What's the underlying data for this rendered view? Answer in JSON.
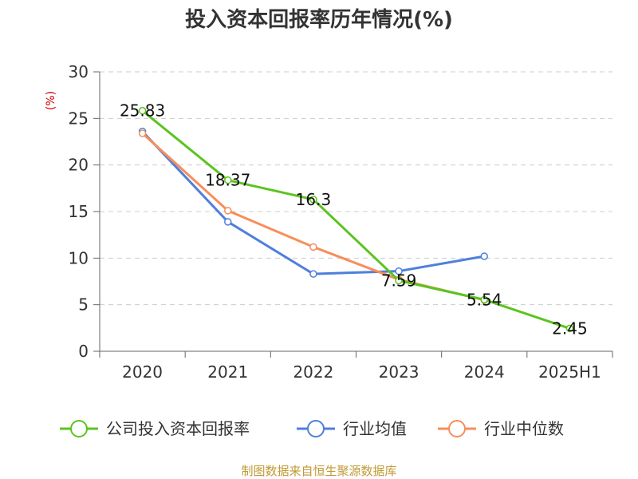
{
  "colors": {
    "company": "#5bc41f",
    "industry_avg": "#4f7fdc",
    "industry_median": "#f78e5b",
    "ylabel": "#cc0000",
    "source": "#c19a35"
  },
  "chart_data": {
    "type": "line",
    "title": "投入资本回报率历年情况(%)",
    "ylabel": "(%)",
    "xlabel": "",
    "categories": [
      "2020",
      "2021",
      "2022",
      "2023",
      "2024",
      "2025H1"
    ],
    "ylim": [
      0,
      30
    ],
    "yticks": [
      "0",
      "5",
      "10",
      "15",
      "20",
      "25",
      "30"
    ],
    "grid": true,
    "legend_position": "bottom",
    "series": [
      {
        "name": "公司投入资本回报率",
        "values": [
          25.83,
          18.37,
          16.3,
          7.59,
          5.54,
          2.45
        ],
        "labels": [
          "25.83",
          "18.37",
          "16.3",
          "7.59",
          "5.54",
          "2.45"
        ]
      },
      {
        "name": "行业均值",
        "values": [
          23.6,
          13.9,
          8.3,
          8.6,
          10.2,
          null
        ]
      },
      {
        "name": "行业中位数",
        "values": [
          23.4,
          15.1,
          11.2,
          7.7,
          5.5,
          null
        ]
      }
    ]
  },
  "source": "制图数据来自恒生聚源数据库"
}
